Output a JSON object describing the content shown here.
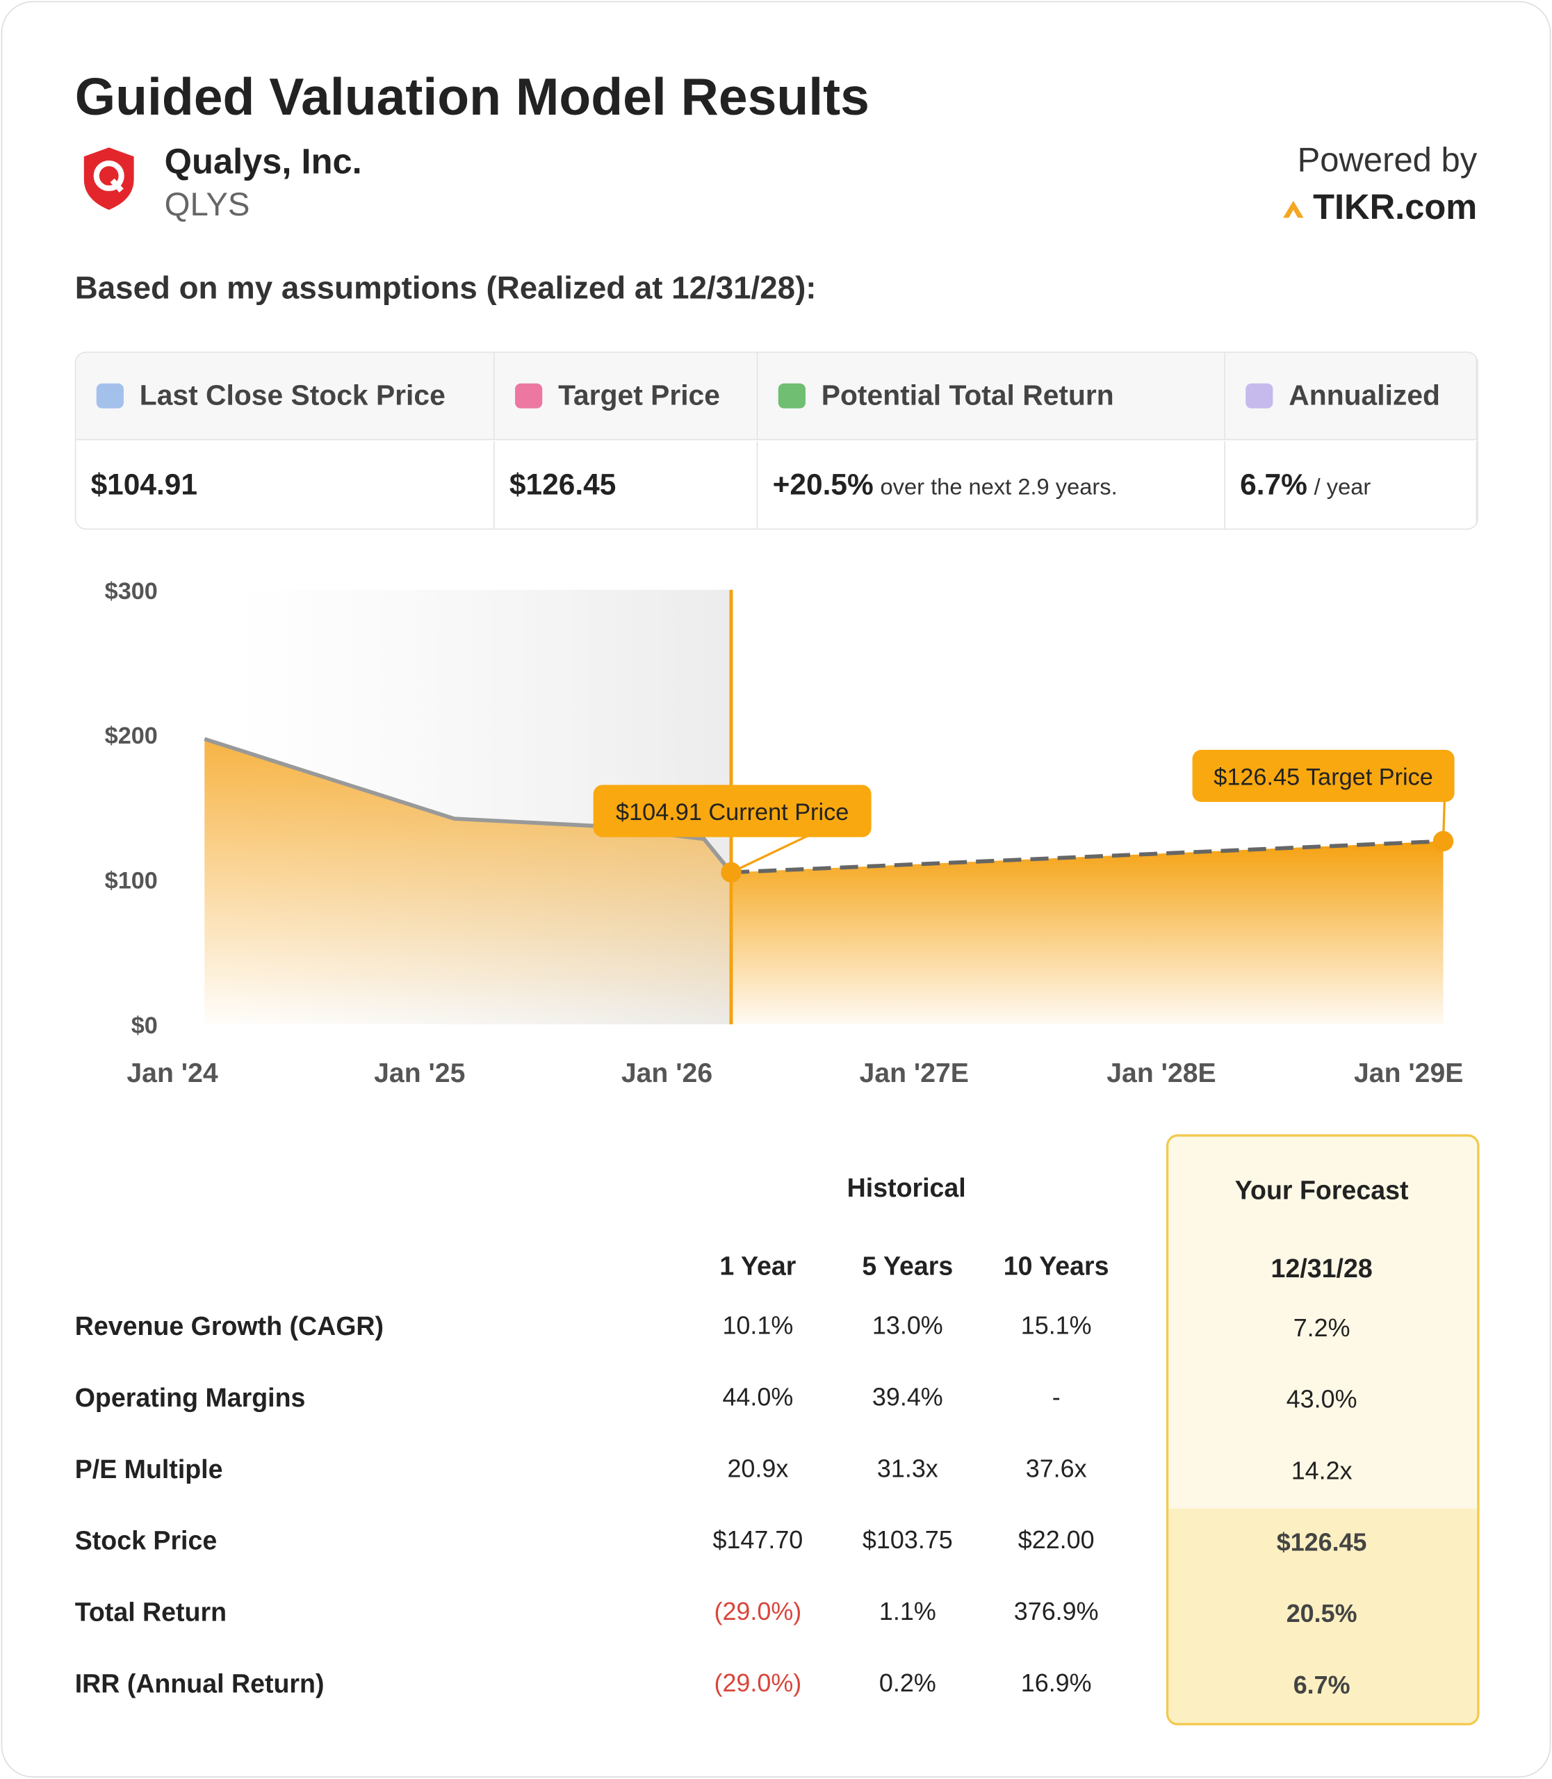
{
  "header": {
    "title": "Guided Valuation Model Results",
    "company": "Qualys, Inc.",
    "ticker": "QLYS",
    "powered_by": "Powered by",
    "brand": "TIKR.com"
  },
  "subtitle": "Based on my assumptions (Realized at 12/31/28):",
  "summary": {
    "headers": [
      "Last Close Stock Price",
      "Target Price",
      "Potential Total Return",
      "Annualized"
    ],
    "values": [
      {
        "main": "$104.91"
      },
      {
        "main": "$126.45"
      },
      {
        "main": "+20.5%",
        "note": "over the next 2.9 years."
      },
      {
        "main": "6.7%",
        "note": "/ year"
      }
    ]
  },
  "chart_data": {
    "type": "line",
    "xlim": [
      2023.78,
      2029.3
    ],
    "xticks": [
      {
        "value": 2024,
        "label": "Jan '24"
      },
      {
        "value": 2025,
        "label": "Jan '25"
      },
      {
        "value": 2026,
        "label": "Jan '26"
      },
      {
        "value": 2027,
        "label": "Jan '27E"
      },
      {
        "value": 2028,
        "label": "Jan '28E"
      },
      {
        "value": 2029,
        "label": "Jan '29E"
      }
    ],
    "ylim": [
      0,
      300
    ],
    "yticks": [
      {
        "value": 0,
        "label": "$0"
      },
      {
        "value": 100,
        "label": "$100"
      },
      {
        "value": 200,
        "label": "$200"
      },
      {
        "value": 300,
        "label": "$300"
      }
    ],
    "series": [
      {
        "color": "#999999",
        "x": [
          2024.13,
          2025.14,
          2025.71,
          2026.15,
          2026.26
        ],
        "values": [
          197,
          142,
          137,
          128,
          104.91
        ]
      },
      {
        "color": "#666666",
        "dashed": true,
        "x": [
          2026.26,
          2029.14
        ],
        "values": [
          104.91,
          126.45
        ]
      }
    ],
    "annotations": [
      "$104.91 Current Price",
      "$126.45 Target Price"
    ]
  },
  "table": {
    "group_header": "Historical",
    "forecast_header": "Your Forecast",
    "columns": [
      "1 Year",
      "5 Years",
      "10 Years",
      "12/31/28"
    ],
    "rows": [
      [
        "Revenue Growth (CAGR)",
        "10.1%",
        "13.0%",
        "15.1%",
        "7.2%"
      ],
      [
        "Operating Margins",
        "44.0%",
        "39.4%",
        "-",
        "43.0%"
      ],
      [
        "P/E Multiple",
        "20.9x",
        "31.3x",
        "37.6x",
        "14.2x"
      ],
      [
        "Stock Price",
        "$147.70",
        "$103.75",
        "$22.00",
        "$126.45"
      ],
      [
        "Total Return",
        "(29.0%)",
        "1.1%",
        "376.9%",
        "20.5%"
      ],
      [
        "IRR (Annual Return)",
        "(29.0%)",
        "0.2%",
        "16.9%",
        "6.7%"
      ]
    ]
  }
}
